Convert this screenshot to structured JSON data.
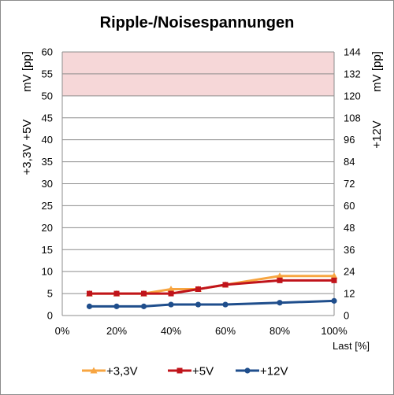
{
  "chart_data": {
    "type": "line",
    "title": "Ripple-/Noisespannungen",
    "xlabel": "Last [%]",
    "ylabel_left_line1": "+3,3V  +5V",
    "ylabel_left_line2": "mV [pp]",
    "ylabel_right_line1": "+12V",
    "ylabel_right_line2": "mV [pp]",
    "x_ticks": [
      "0%",
      "20%",
      "40%",
      "60%",
      "80%",
      "100%"
    ],
    "xlim": [
      0,
      100
    ],
    "ylim_left": [
      0,
      60
    ],
    "ylim_right": [
      0,
      144
    ],
    "y_ticks_left": [
      0,
      5,
      10,
      15,
      20,
      25,
      30,
      35,
      40,
      45,
      50,
      55,
      60
    ],
    "y_ticks_right": [
      0,
      12,
      24,
      36,
      48,
      60,
      72,
      84,
      96,
      108,
      120,
      132,
      144
    ],
    "limit_band_left": [
      50,
      60
    ],
    "limit_band_color": "#f6d7d8",
    "grid": true,
    "legend_position": "bottom",
    "series": [
      {
        "name": "+3,3V",
        "axis": "left",
        "color": "#f7a541",
        "marker": "triangle",
        "x": [
          10,
          20,
          30,
          40,
          50,
          60,
          80,
          100
        ],
        "values": [
          5,
          5,
          5,
          6,
          6,
          7,
          9,
          9
        ]
      },
      {
        "name": "+5V",
        "axis": "left",
        "color": "#c0141b",
        "marker": "square",
        "x": [
          10,
          20,
          30,
          40,
          50,
          60,
          80,
          100
        ],
        "values": [
          5,
          5,
          5,
          5,
          6,
          7,
          8,
          8
        ]
      },
      {
        "name": "+12V",
        "axis": "right",
        "color": "#1f4e8c",
        "marker": "circle",
        "x": [
          10,
          20,
          30,
          40,
          50,
          60,
          80,
          100
        ],
        "values": [
          5,
          5,
          5,
          6,
          6,
          6,
          7,
          8
        ]
      }
    ]
  }
}
